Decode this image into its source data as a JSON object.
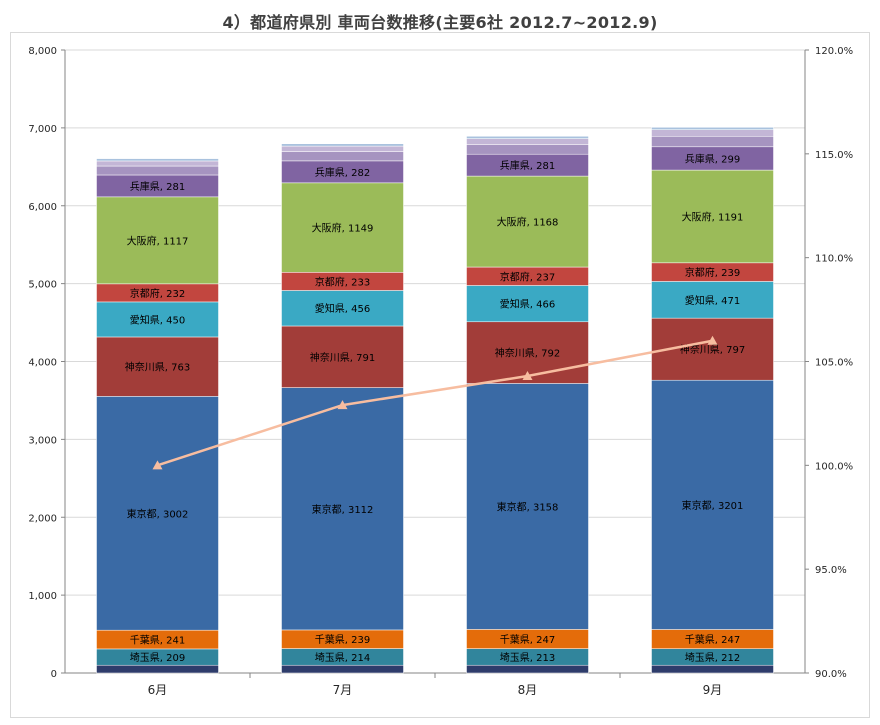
{
  "chart_data": {
    "type": "bar",
    "subtype": "stacked-with-line",
    "title": "4）都道府県別 車両台数推移(主要6社 2012.7~2012.9)",
    "categories": [
      "6月",
      "7月",
      "8月",
      "9月"
    ],
    "ylim": [
      0,
      8000
    ],
    "y_ticks": [
      "0",
      "1,000",
      "2,000",
      "3,000",
      "4,000",
      "5,000",
      "6,000",
      "7,000",
      "8,000"
    ],
    "y2lim": [
      90.0,
      120.0
    ],
    "y2_ticks": [
      "90.0%",
      "95.0%",
      "100.0%",
      "105.0%",
      "110.0%",
      "115.0%",
      "120.0%"
    ],
    "grid": true,
    "series": [
      {
        "name": "",
        "values": [
          100,
          100,
          100,
          100
        ],
        "color": "#2e3c6b",
        "labeled": false
      },
      {
        "name": "埼玉県",
        "values": [
          209,
          214,
          213,
          212
        ],
        "color": "#31859c",
        "labeled": true
      },
      {
        "name": "千葉県",
        "values": [
          241,
          239,
          247,
          247
        ],
        "color": "#e46c0a",
        "labeled": true
      },
      {
        "name": "東京都",
        "values": [
          3002,
          3112,
          3158,
          3201
        ],
        "color": "#3a6aa5",
        "labeled": true
      },
      {
        "name": "神奈川県",
        "values": [
          763,
          791,
          792,
          797
        ],
        "color": "#a23d39",
        "labeled": true
      },
      {
        "name": "愛知県",
        "values": [
          450,
          456,
          466,
          471
        ],
        "color": "#3aa9c4",
        "labeled": true
      },
      {
        "name": "京都府",
        "values": [
          232,
          233,
          237,
          239
        ],
        "color": "#c2463f",
        "labeled": true
      },
      {
        "name": "大阪府",
        "values": [
          1117,
          1149,
          1168,
          1191
        ],
        "color": "#9bbb59",
        "labeled": true
      },
      {
        "name": "兵庫県",
        "values": [
          281,
          282,
          281,
          299
        ],
        "color": "#8064a2",
        "labeled": true
      },
      {
        "name": "",
        "values": [
          115,
          120,
          125,
          135
        ],
        "color": "#a694c0",
        "labeled": false
      },
      {
        "name": "",
        "values": [
          65,
          70,
          75,
          85
        ],
        "color": "#c3b6d6",
        "labeled": false
      },
      {
        "name": "",
        "values": [
          30,
          30,
          30,
          30
        ],
        "color": "#a9c2de",
        "labeled": false
      }
    ],
    "line": {
      "name": "",
      "axis": "secondary",
      "values": [
        100.0,
        102.9,
        104.3,
        106.0
      ],
      "color": "#f7bda0"
    }
  }
}
